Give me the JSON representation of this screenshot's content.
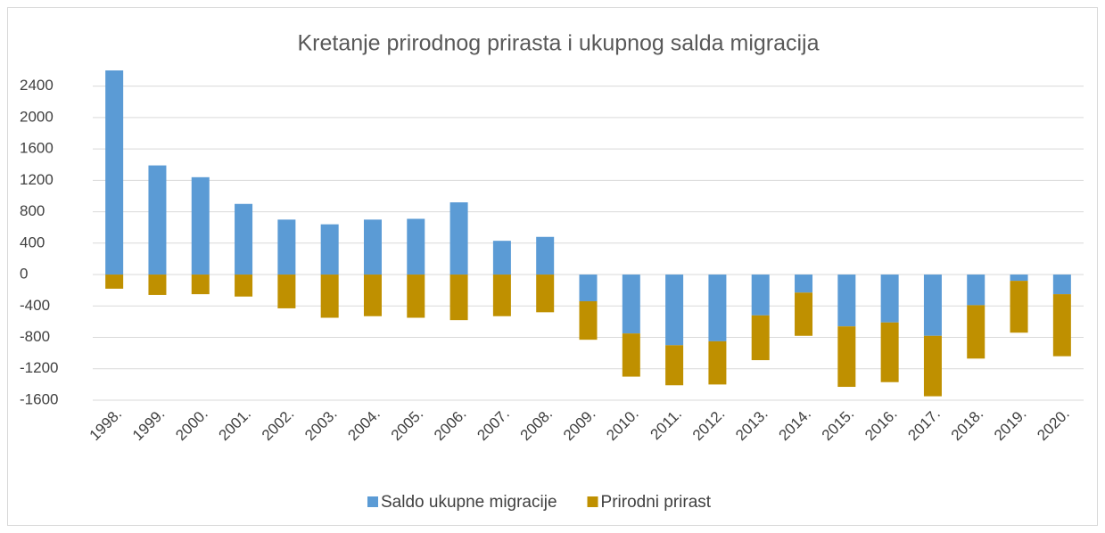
{
  "chart_data": {
    "type": "stacked_bar",
    "title": "Kretanje prirodnog prirasta i ukupnog salda migracija",
    "categories": [
      "1998.",
      "1999.",
      "2000.",
      "2001.",
      "2002.",
      "2003.",
      "2004.",
      "2005.",
      "2006.",
      "2007.",
      "2008.",
      "2009.",
      "2010.",
      "2011.",
      "2012.",
      "2013.",
      "2014.",
      "2015.",
      "2016.",
      "2017.",
      "2018.",
      "2019.",
      "2020."
    ],
    "series": [
      {
        "name": "Saldo ukupne migracije",
        "color": "#5b9bd5",
        "values": [
          2600,
          1390,
          1240,
          900,
          700,
          640,
          700,
          710,
          920,
          430,
          480,
          -340,
          -750,
          -900,
          -850,
          -520,
          -230,
          -660,
          -610,
          -780,
          -390,
          -80,
          -250
        ]
      },
      {
        "name": "Prirodni prirast",
        "color": "#bf9000",
        "values": [
          -180,
          -260,
          -250,
          -280,
          -430,
          -550,
          -530,
          -550,
          -580,
          -530,
          -480,
          -490,
          -550,
          -510,
          -550,
          -570,
          -550,
          -770,
          -760,
          -770,
          -680,
          -660,
          -790
        ]
      }
    ],
    "ylim": [
      -1600,
      2600
    ],
    "yticks": [
      -1600,
      -1200,
      -800,
      -400,
      0,
      400,
      800,
      1200,
      1600,
      2000,
      2400
    ],
    "grid": true,
    "legend": "bottom"
  }
}
